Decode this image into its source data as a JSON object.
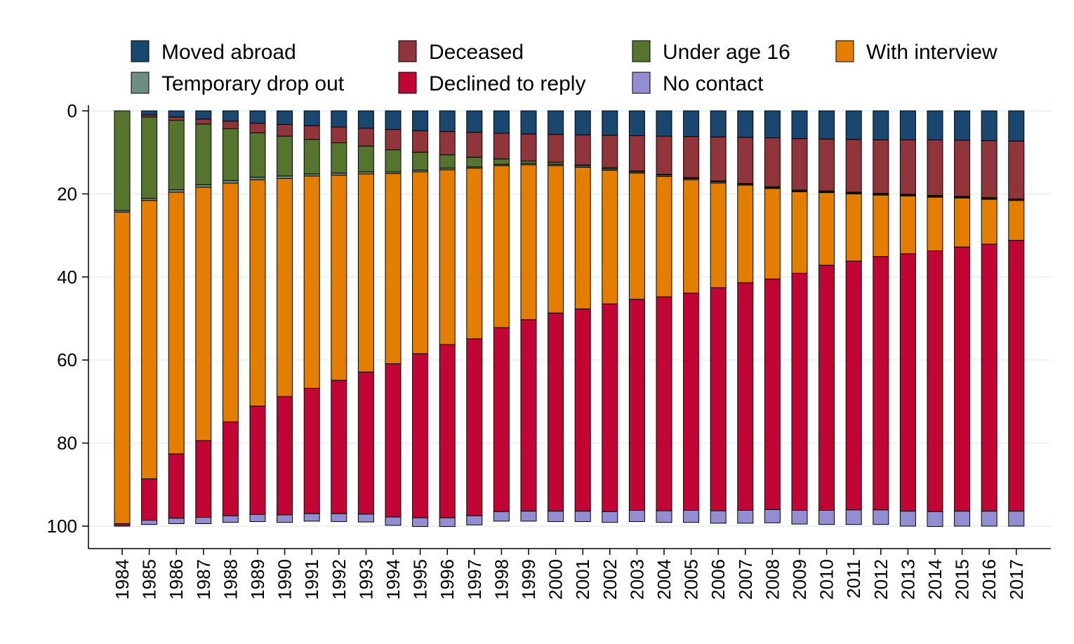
{
  "chart_data": {
    "type": "bar",
    "stacked": true,
    "y_reversed": true,
    "ylim": [
      0,
      100
    ],
    "yticks": [
      0,
      20,
      40,
      60,
      80,
      100
    ],
    "ytick_labels": [
      "0",
      "20",
      "40",
      "60",
      "80",
      "100"
    ],
    "grid": true,
    "legend_position": "top",
    "title": "",
    "xlabel": "",
    "ylabel": "",
    "categories": [
      "1984",
      "1985",
      "1986",
      "1987",
      "1988",
      "1989",
      "1990",
      "1991",
      "1992",
      "1993",
      "1994",
      "1995",
      "1996",
      "1997",
      "1998",
      "1999",
      "2000",
      "2001",
      "2002",
      "2003",
      "2004",
      "2005",
      "2006",
      "2007",
      "2008",
      "2009",
      "2010",
      "2011",
      "2012",
      "2013",
      "2014",
      "2015",
      "2016",
      "2017"
    ],
    "series": [
      {
        "name": "Moved abroad",
        "color": "#1a476f",
        "values": [
          0.0,
          1.0,
          1.5,
          2.0,
          2.5,
          3.0,
          3.3,
          3.6,
          3.9,
          4.2,
          4.5,
          4.8,
          5.0,
          5.2,
          5.4,
          5.6,
          5.7,
          5.8,
          5.9,
          6.0,
          6.1,
          6.2,
          6.3,
          6.4,
          6.5,
          6.7,
          6.8,
          6.9,
          7.0,
          7.0,
          7.0,
          7.1,
          7.2,
          7.3
        ]
      },
      {
        "name": "Deceased",
        "color": "#90353b",
        "values": [
          0.0,
          0.5,
          0.8,
          1.2,
          1.8,
          2.3,
          2.8,
          3.3,
          3.8,
          4.3,
          4.9,
          5.2,
          5.6,
          6.0,
          6.2,
          6.5,
          6.7,
          7.2,
          7.8,
          8.5,
          9.2,
          9.9,
          10.6,
          11.1,
          11.8,
          12.4,
          12.5,
          12.7,
          12.9,
          13.1,
          13.4,
          13.5,
          13.7,
          13.9
        ]
      },
      {
        "name": "Under age 16",
        "color": "#55752f",
        "values": [
          24.0,
          19.6,
          16.7,
          14.6,
          12.5,
          10.7,
          9.6,
          8.3,
          7.3,
          6.2,
          5.3,
          4.3,
          3.2,
          2.3,
          1.3,
          0.6,
          0.5,
          0.3,
          0.3,
          0.2,
          0.2,
          0.2,
          0.2,
          0.2,
          0.2,
          0.2,
          0.2,
          0.2,
          0.2,
          0.2,
          0.2,
          0.2,
          0.2,
          0.2
        ]
      },
      {
        "name": "Temporary drop out",
        "color": "#6e8e84",
        "values": [
          0.4,
          0.5,
          0.6,
          0.6,
          0.6,
          0.6,
          0.6,
          0.5,
          0.5,
          0.5,
          0.4,
          0.4,
          0.4,
          0.3,
          0.3,
          0.3,
          0.3,
          0.3,
          0.3,
          0.3,
          0.3,
          0.3,
          0.3,
          0.2,
          0.2,
          0.2,
          0.2,
          0.2,
          0.2,
          0.2,
          0.2,
          0.2,
          0.2,
          0.2
        ]
      },
      {
        "name": "With interview",
        "color": "#e37e00",
        "values": [
          75.0,
          67.0,
          63.0,
          61.0,
          57.5,
          54.5,
          52.5,
          51.1,
          49.4,
          47.7,
          45.8,
          43.8,
          42.1,
          41.1,
          39.0,
          37.3,
          35.5,
          34.1,
          32.2,
          30.4,
          29.0,
          27.3,
          25.2,
          23.5,
          21.8,
          19.6,
          17.5,
          16.2,
          14.8,
          13.9,
          12.9,
          11.8,
          10.8,
          9.6
        ]
      },
      {
        "name": "Declined to reply",
        "color": "#c10534",
        "values": [
          0.5,
          10.0,
          15.5,
          18.5,
          22.6,
          26.1,
          28.5,
          30.2,
          32.1,
          34.2,
          36.9,
          39.5,
          41.7,
          42.6,
          44.3,
          46.1,
          47.7,
          48.7,
          50.0,
          50.8,
          51.5,
          52.3,
          53.7,
          54.8,
          55.5,
          57.1,
          59.0,
          59.9,
          61.0,
          62.0,
          62.8,
          63.6,
          64.3,
          65.2
        ]
      },
      {
        "name": "No contact",
        "color": "#938dd2",
        "values": [
          0.1,
          1.0,
          1.3,
          1.5,
          1.6,
          1.7,
          1.8,
          1.8,
          1.9,
          1.9,
          2.0,
          2.1,
          2.1,
          2.2,
          2.3,
          2.4,
          2.5,
          2.5,
          2.6,
          2.7,
          2.8,
          2.9,
          3.0,
          3.1,
          3.2,
          3.3,
          3.4,
          3.5,
          3.5,
          3.6,
          3.6,
          3.6,
          3.6,
          3.6
        ]
      }
    ]
  }
}
